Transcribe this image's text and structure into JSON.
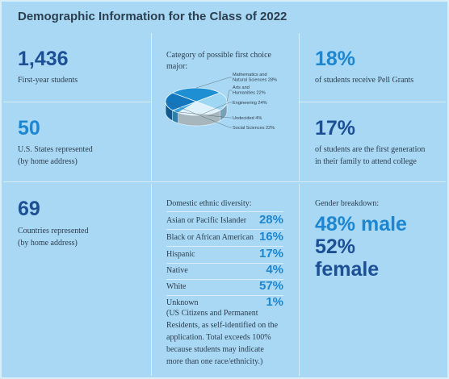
{
  "title": "Demographic Information for the Class of 2022",
  "stats": {
    "first_year": {
      "value": "1,436",
      "label": "First-year students"
    },
    "states": {
      "value": "50",
      "label_line1": "U.S. States represented",
      "label_line2": "(by home address)"
    },
    "countries": {
      "value": "69",
      "label_line1": "Countries represented",
      "label_line2": "(by home address)"
    },
    "pell": {
      "value": "18%",
      "label": "of students receive Pell Grants"
    },
    "first_gen": {
      "value": "17%",
      "label_line1": "of students are the first generation",
      "label_line2": "in their family to attend college"
    }
  },
  "major": {
    "heading_line1": "Category of possible first choice",
    "heading_line2": "major:"
  },
  "ethnic": {
    "heading": "Domestic ethnic diversity:",
    "note_lines": [
      "(US Citizens and Permanent",
      "Residents, as self-identified on the",
      "application. Total exceeds 100%",
      "because students may indicate",
      "more than one race/ethnicity.)"
    ]
  },
  "gender": {
    "heading": "Gender breakdown:",
    "male": "48% male",
    "female_line1": "52%",
    "female_line2": "female"
  },
  "colors": {
    "navy": "#1c4f93",
    "blue": "#1d86d1",
    "background": "#a9d8f4"
  },
  "chart_data": [
    {
      "type": "pie",
      "title": "Category of possible first choice major:",
      "categories": [
        "Mathematics and Natural Sciences",
        "Arts and Humanities",
        "Engineering",
        "Undecided",
        "Social Sciences"
      ],
      "values": [
        28,
        22,
        24,
        4,
        22
      ],
      "labels": [
        {
          "line1": "Mathematics and",
          "line2": "Natural Sciences 28%"
        },
        {
          "line1": "Arts and",
          "line2": "Humanities 22%"
        },
        {
          "line1": "Engineering 24%",
          "line2": ""
        },
        {
          "line1": "Undecided 4%",
          "line2": ""
        },
        {
          "line1": "Social Sciences 22%",
          "line2": ""
        }
      ],
      "colors": [
        "#1f8fd4",
        "#9fd6f2",
        "#dff2fb",
        "#3aa7e2",
        "#1476bd"
      ]
    },
    {
      "type": "table",
      "title": "Domestic ethnic diversity:",
      "categories": [
        "Asian or Pacific Islander",
        "Black or African American",
        "Hispanic",
        "Native",
        "White",
        "Unknown"
      ],
      "values": [
        28,
        16,
        17,
        4,
        57,
        1
      ],
      "value_labels": [
        "28%",
        "16%",
        "17%",
        "4%",
        "57%",
        "1%"
      ]
    }
  ]
}
